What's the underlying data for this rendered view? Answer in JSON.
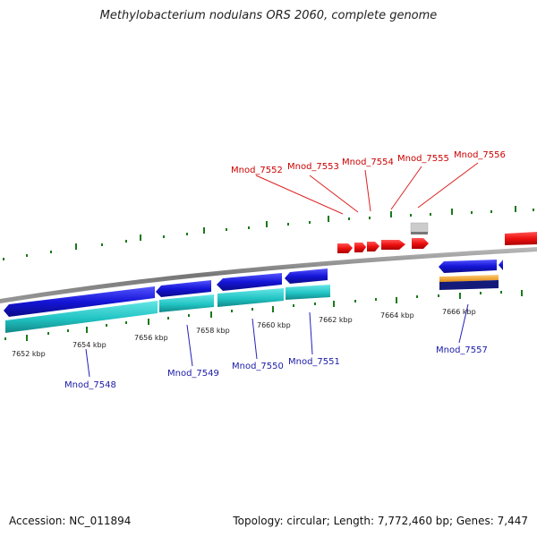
{
  "title": "Methylobacterium nodulans ORS 2060, complete genome",
  "footer": {
    "accession": "Accession: NC_011894",
    "summary": "Topology: circular; Length: 7,772,460 bp; Genes: 7,447"
  },
  "colors": {
    "forward_gene": "#ee1111",
    "reverse_gene": "#1a1ad0",
    "cds": "#33cccc",
    "backbone": "#888888",
    "tick": "#1a7a1a",
    "label_red": "#cc0000",
    "label_blue": "#1a1aa8"
  },
  "scale_ticks": [
    "7652 kbp",
    "7654 kbp",
    "7656 kbp",
    "7658 kbp",
    "7660 kbp",
    "7662 kbp",
    "7664 kbp",
    "7666 kbp"
  ],
  "gene_labels_top": [
    "Mnod_7552",
    "Mnod_7553",
    "Mnod_7554",
    "Mnod_7555",
    "Mnod_7556"
  ],
  "gene_labels_bottom": [
    "Mnod_7548",
    "Mnod_7549",
    "Mnod_7550",
    "Mnod_7551",
    "Mnod_7557"
  ]
}
